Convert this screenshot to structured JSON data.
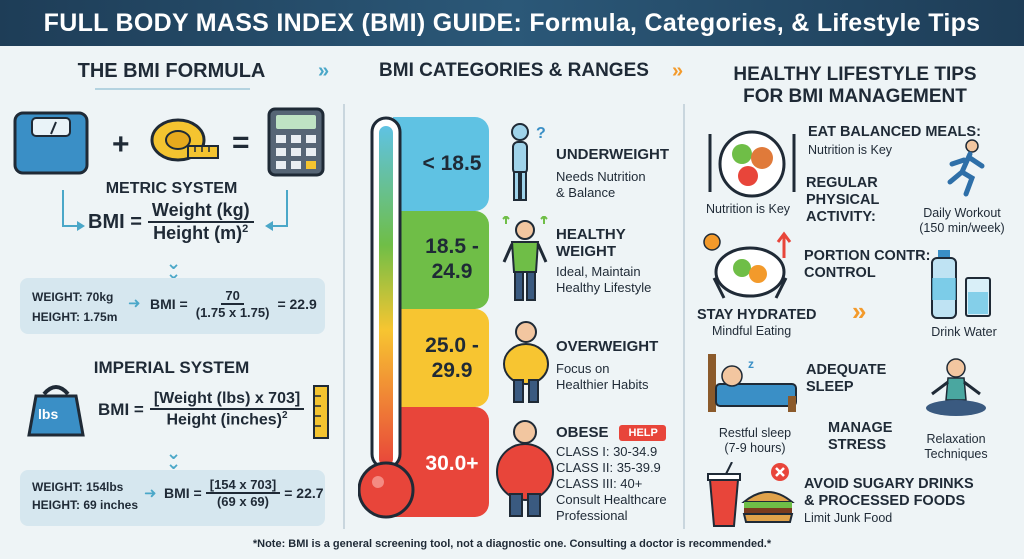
{
  "header": {
    "title": "FULL BODY MASS INDEX (BMI) GUIDE: Formula, Categories, & Lifestyle Tips"
  },
  "formula": {
    "title": "THE BMI FORMULA",
    "metric": {
      "title": "METRIC SYSTEM",
      "lhs": "BMI =",
      "numerator": "Weight (kg)",
      "denominator": "Height (m)",
      "exponent": "2",
      "example_weight": "WEIGHT: 70kg",
      "example_height": "HEIGHT: 1.75m",
      "example_lhs": "BMI =",
      "example_num": "70",
      "example_den": "(1.75 x 1.75)",
      "example_result": "= 22.9"
    },
    "imperial": {
      "title": "IMPERIAL SYSTEM",
      "weight_tag": "lbs",
      "lhs": "BMI =",
      "numerator": "[Weight (lbs) x 703]",
      "denominator": "Height (inches)",
      "exponent": "2",
      "example_weight": "WEIGHT: 154lbs",
      "example_height": "HEIGHT: 69 inches",
      "example_lhs": "BMI =",
      "example_num": "[154 x 703]",
      "example_den": "(69 x 69)",
      "example_result": "= 22.7"
    },
    "plus": "+",
    "equals": "="
  },
  "categories": {
    "title": "BMI CATEGORIES & RANGES",
    "items": [
      {
        "range": "< 18.5",
        "title": "UNDERWEIGHT",
        "desc1": "Needs Nutrition",
        "desc2": "& Balance",
        "color": "#5fc2e3"
      },
      {
        "range_line1": "18.5 -",
        "range_line2": "24.9",
        "title_line1": "HEALTHY",
        "title_line2": "WEIGHT",
        "desc1": "Ideal, Maintain",
        "desc2": "Healthy Lifestyle",
        "color": "#6fbe47"
      },
      {
        "range_line1": "25.0 -",
        "range_line2": "29.9",
        "title": "OVERWEIGHT",
        "desc1": "Focus on",
        "desc2": "Healthier Habits",
        "color": "#f7c531"
      },
      {
        "range": "30.0+",
        "title": "OBESE",
        "badge": "HELP",
        "class1": "CLASS I: 30-34.9",
        "class2": "CLASS II: 35-39.9",
        "class3": "CLASS III: 40+",
        "desc1": "Consult Healthcare",
        "desc2": "Professional",
        "color": "#e8453a"
      }
    ]
  },
  "tips": {
    "title_line1": "HEALTHY LIFESTYLE TIPS",
    "title_line2": "FOR BMI MANAGEMENT",
    "eat": {
      "title": "EAT BALANCED MEALS:",
      "sub": "Nutrition is Key",
      "caption": "Nutrition is Key"
    },
    "activity": {
      "line1": "REGULAR",
      "line2": "PHYSICAL",
      "line3": "ACTIVITY:",
      "caption1": "Daily Workout",
      "caption2": "(150 min/week)"
    },
    "portion": {
      "line1": "PORTION CONTR:",
      "line2": "CONTROL"
    },
    "hydrate": {
      "title": "STAY HYDRATED",
      "sub": "Mindful Eating",
      "caption": "Drink Water"
    },
    "sleep": {
      "line1": "ADEQUATE",
      "line2": "SLEEP",
      "caption1": "Restful sleep",
      "caption2": "(7-9 hours)"
    },
    "stress": {
      "line1": "MANAGE",
      "line2": "STRESS",
      "caption1": "Relaxation",
      "caption2": "Techniques"
    },
    "sugar": {
      "line1": "AVOID SUGARY DRINKS",
      "line2": "& PROCESSED FOODS",
      "sub": "Limit Junk Food"
    }
  },
  "footer": {
    "note": "*Note: BMI is a general screening tool, not a diagnostic one. Consulting a doctor is recommended.*"
  }
}
